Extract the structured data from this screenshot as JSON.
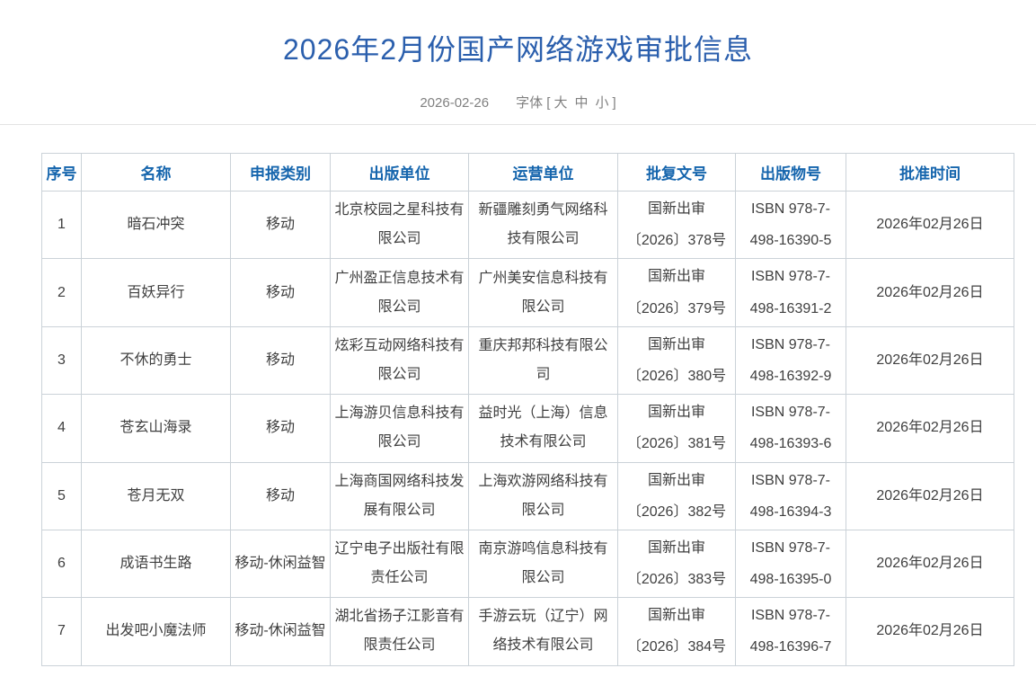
{
  "page": {
    "title": "2026年2月份国产网络游戏审批信息",
    "date": "2026-02-26",
    "font_label": "字体",
    "bracket_open": "[",
    "bracket_close": "]",
    "font_sizes": [
      "大",
      "中",
      "小"
    ]
  },
  "colors": {
    "title_blue": "#2b5fad",
    "header_blue": "#1565ad",
    "border": "#cbd2d8",
    "body_text": "#3f3f3f",
    "muted_text": "#808080"
  },
  "table": {
    "headers": [
      "序号",
      "名称",
      "申报类别",
      "出版单位",
      "运营单位",
      "批复文号",
      "出版物号",
      "批准时间"
    ],
    "rows": [
      {
        "seq": "1",
        "name": "暗石冲突",
        "category": "移动",
        "publisher": "北京校园之星科技有限公司",
        "operator": "新疆雕刻勇气网络科技有限公司",
        "approval_line1": "国新出审",
        "approval_line2": "〔2026〕378号",
        "isbn_line1": "ISBN 978-7-",
        "isbn_line2": "498-16390-5",
        "date": "2026年02月26日"
      },
      {
        "seq": "2",
        "name": "百妖异行",
        "category": "移动",
        "publisher": "广州盈正信息技术有限公司",
        "operator": "广州美安信息科技有限公司",
        "approval_line1": "国新出审",
        "approval_line2": "〔2026〕379号",
        "isbn_line1": "ISBN 978-7-",
        "isbn_line2": "498-16391-2",
        "date": "2026年02月26日"
      },
      {
        "seq": "3",
        "name": "不休的勇士",
        "category": "移动",
        "publisher": "炫彩互动网络科技有限公司",
        "operator": "重庆邦邦科技有限公司",
        "approval_line1": "国新出审",
        "approval_line2": "〔2026〕380号",
        "isbn_line1": "ISBN 978-7-",
        "isbn_line2": "498-16392-9",
        "date": "2026年02月26日"
      },
      {
        "seq": "4",
        "name": "苍玄山海录",
        "category": "移动",
        "publisher": "上海游贝信息科技有限公司",
        "operator": "益时光（上海）信息技术有限公司",
        "approval_line1": "国新出审",
        "approval_line2": "〔2026〕381号",
        "isbn_line1": "ISBN 978-7-",
        "isbn_line2": "498-16393-6",
        "date": "2026年02月26日"
      },
      {
        "seq": "5",
        "name": "苍月无双",
        "category": "移动",
        "publisher": "上海商国网络科技发展有限公司",
        "operator": "上海欢游网络科技有限公司",
        "approval_line1": "国新出审",
        "approval_line2": "〔2026〕382号",
        "isbn_line1": "ISBN 978-7-",
        "isbn_line2": "498-16394-3",
        "date": "2026年02月26日"
      },
      {
        "seq": "6",
        "name": "成语书生路",
        "category": "移动-休闲益智",
        "publisher": "辽宁电子出版社有限责任公司",
        "operator": "南京游鸣信息科技有限公司",
        "approval_line1": "国新出审",
        "approval_line2": "〔2026〕383号",
        "isbn_line1": "ISBN 978-7-",
        "isbn_line2": "498-16395-0",
        "date": "2026年02月26日"
      },
      {
        "seq": "7",
        "name": "出发吧小魔法师",
        "category": "移动-休闲益智",
        "publisher": "湖北省扬子江影音有限责任公司",
        "operator": "手游云玩（辽宁）网络技术有限公司",
        "approval_line1": "国新出审",
        "approval_line2": "〔2026〕384号",
        "isbn_line1": "ISBN 978-7-",
        "isbn_line2": "498-16396-7",
        "date": "2026年02月26日"
      }
    ]
  }
}
